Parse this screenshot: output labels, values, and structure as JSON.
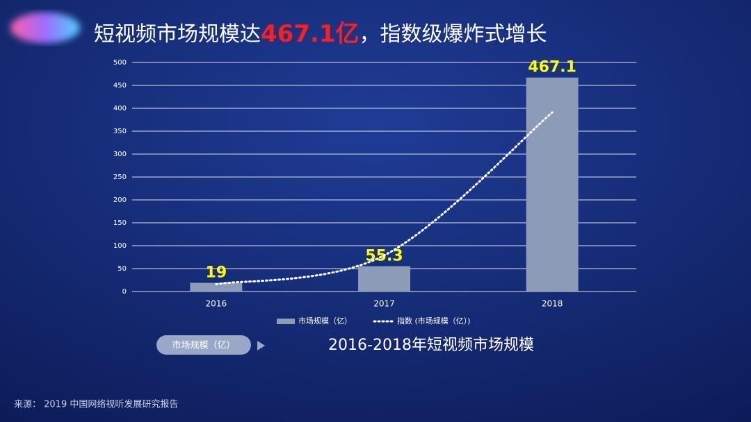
{
  "title_prefix": "短视频市场规模达",
  "title_highlight": "467.1亿",
  "title_suffix": "，指数级爆炸式增长",
  "chart_data": {
    "type": "bar",
    "categories": [
      "2016",
      "2017",
      "2018"
    ],
    "series": [
      {
        "name": "市场规模（亿）",
        "color": "#8b9bb8",
        "values": [
          19,
          55.3,
          467.1
        ]
      }
    ],
    "trend": {
      "name": "指数 (市场规模（亿）)",
      "color": "#ffffff",
      "values": [
        15.9,
        78.9,
        391
      ]
    },
    "ylim": [
      0,
      500
    ],
    "yticks": [
      0,
      50,
      100,
      150,
      200,
      250,
      300,
      350,
      400,
      450,
      500
    ],
    "grid": true,
    "legend": "bottom"
  },
  "button": "市场规模（亿）",
  "caption": "2016-2018年短视频市场规模",
  "source": "来源： 2019 中国网络视听发展研究报告"
}
